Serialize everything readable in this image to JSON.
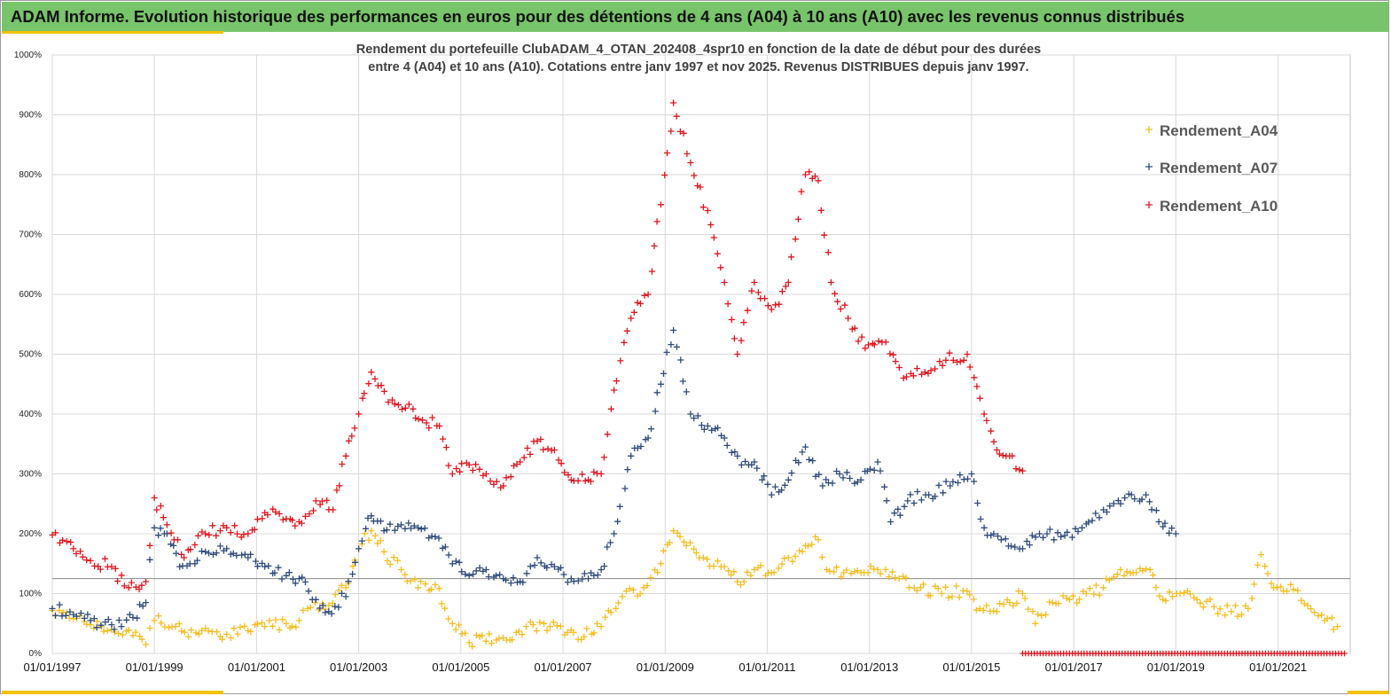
{
  "banner": {
    "title": "ADAM Informe. Evolution historique des performances en euros pour des détentions de 4 ans (A04) à 10 ans (A10) avec les revenus connus distribués"
  },
  "colors": {
    "banner_bg": "#78c46a",
    "accent": "#f2c200",
    "A04": "#f5bd1f",
    "A07": "#2f4a7a",
    "A10": "#e0141e"
  },
  "chart_data": {
    "type": "scatter",
    "title_lines": [
      "Rendement du portefeuille ClubADAM_4_OTAN_202408_4spr10  en fonction de la date de début pour des durées",
      "entre 4 (A04) et 10 ans (A10). Cotations entre janv 1997 et nov 2025. Revenus DISTRIBUES depuis janv 1997."
    ],
    "xlabel": "",
    "ylabel": "",
    "x_range": [
      "1997-01-01",
      "2022-06-01"
    ],
    "y_range": [
      0,
      1000
    ],
    "y_unit": "%",
    "y_ticks": [
      0,
      100,
      200,
      300,
      400,
      500,
      600,
      700,
      800,
      900,
      1000
    ],
    "y_tick_labels": [
      "0%",
      "100%",
      "200%",
      "300%",
      "400%",
      "500%",
      "600%",
      "700%",
      "800%",
      "900%",
      "1000%"
    ],
    "x_tick_labels": [
      "01/01/1997",
      "01/01/1999",
      "01/01/2001",
      "01/01/2003",
      "01/01/2005",
      "01/01/2007",
      "01/01/2009",
      "01/01/2011",
      "01/01/2013",
      "01/01/2015",
      "01/01/2017",
      "01/01/2019",
      "01/01/2021"
    ],
    "x_tick_dates": [
      "1997-01-01",
      "1999-01-01",
      "2001-01-01",
      "2003-01-01",
      "2005-01-01",
      "2007-01-01",
      "2009-01-01",
      "2011-01-01",
      "2013-01-01",
      "2015-01-01",
      "2017-01-01",
      "2019-01-01",
      "2021-01-01"
    ],
    "grid": true,
    "marker": "+",
    "reference_line_y": 125,
    "legend_position": "top-right",
    "series": [
      {
        "name": "Rendement_A04",
        "color": "#f5bd1f",
        "points": [
          [
            "1997-01-01",
            72
          ],
          [
            "1997-06-01",
            58
          ],
          [
            "1997-10-01",
            48
          ],
          [
            "1998-03-01",
            40
          ],
          [
            "1998-08-01",
            30
          ],
          [
            "1998-11-01",
            15
          ],
          [
            "1999-01-01",
            55
          ],
          [
            "1999-06-01",
            45
          ],
          [
            "1999-09-01",
            28
          ],
          [
            "2000-01-01",
            42
          ],
          [
            "2000-06-01",
            32
          ],
          [
            "2000-11-01",
            38
          ],
          [
            "2001-03-01",
            45
          ],
          [
            "2001-08-01",
            50
          ],
          [
            "2001-11-01",
            55
          ],
          [
            "2002-01-01",
            75
          ],
          [
            "2002-06-01",
            80
          ],
          [
            "2002-10-01",
            110
          ],
          [
            "2003-01-01",
            175
          ],
          [
            "2003-04-01",
            205
          ],
          [
            "2003-07-01",
            170
          ],
          [
            "2003-11-01",
            140
          ],
          [
            "2004-03-01",
            110
          ],
          [
            "2004-07-01",
            115
          ],
          [
            "2004-11-01",
            50
          ],
          [
            "2005-03-01",
            18
          ],
          [
            "2005-06-01",
            30
          ],
          [
            "2005-10-01",
            25
          ],
          [
            "2006-02-01",
            35
          ],
          [
            "2006-06-01",
            48
          ],
          [
            "2006-10-01",
            45
          ],
          [
            "2007-02-01",
            35
          ],
          [
            "2007-06-01",
            28
          ],
          [
            "2007-10-01",
            45
          ],
          [
            "2008-03-01",
            95
          ],
          [
            "2008-08-01",
            110
          ],
          [
            "2008-12-01",
            150
          ],
          [
            "2009-03-01",
            205
          ],
          [
            "2009-06-01",
            180
          ],
          [
            "2009-10-01",
            160
          ],
          [
            "2010-03-01",
            145
          ],
          [
            "2010-06-01",
            120
          ],
          [
            "2010-10-01",
            140
          ],
          [
            "2011-02-01",
            135
          ],
          [
            "2011-06-01",
            160
          ],
          [
            "2011-10-01",
            180
          ],
          [
            "2012-01-01",
            190
          ],
          [
            "2012-03-01",
            140
          ],
          [
            "2012-07-01",
            135
          ],
          [
            "2012-11-01",
            135
          ],
          [
            "2013-03-01",
            140
          ],
          [
            "2013-08-01",
            125
          ],
          [
            "2014-01-01",
            110
          ],
          [
            "2014-06-01",
            100
          ],
          [
            "2014-11-01",
            105
          ],
          [
            "2015-03-01",
            75
          ],
          [
            "2015-07-01",
            70
          ],
          [
            "2015-10-01",
            85
          ],
          [
            "2016-01-01",
            100
          ],
          [
            "2016-04-01",
            50
          ],
          [
            "2016-08-01",
            85
          ],
          [
            "2016-12-01",
            90
          ],
          [
            "2017-04-01",
            100
          ],
          [
            "2017-08-01",
            110
          ],
          [
            "2017-12-01",
            140
          ],
          [
            "2018-03-01",
            135
          ],
          [
            "2018-07-01",
            140
          ],
          [
            "2018-10-01",
            90
          ],
          [
            "2019-02-01",
            100
          ],
          [
            "2019-06-01",
            90
          ],
          [
            "2019-10-01",
            78
          ],
          [
            "2020-02-01",
            70
          ],
          [
            "2020-06-01",
            75
          ],
          [
            "2020-09-01",
            165
          ],
          [
            "2020-12-01",
            110
          ],
          [
            "2021-04-01",
            115
          ],
          [
            "2021-08-01",
            80
          ],
          [
            "2021-12-01",
            55
          ],
          [
            "2022-03-01",
            45
          ]
        ]
      },
      {
        "name": "Rendement_A07",
        "color": "#2f4a7a",
        "points": [
          [
            "1997-01-01",
            75
          ],
          [
            "1997-06-01",
            65
          ],
          [
            "1997-10-01",
            55
          ],
          [
            "1998-03-01",
            48
          ],
          [
            "1998-08-01",
            60
          ],
          [
            "1998-11-01",
            85
          ],
          [
            "1999-01-01",
            210
          ],
          [
            "1999-04-01",
            200
          ],
          [
            "1999-07-01",
            145
          ],
          [
            "2000-01-01",
            170
          ],
          [
            "2000-06-01",
            175
          ],
          [
            "2000-11-01",
            160
          ],
          [
            "2001-03-01",
            145
          ],
          [
            "2001-08-01",
            130
          ],
          [
            "2001-11-01",
            125
          ],
          [
            "2002-03-01",
            90
          ],
          [
            "2002-06-01",
            70
          ],
          [
            "2002-10-01",
            95
          ],
          [
            "2003-01-01",
            175
          ],
          [
            "2003-04-01",
            230
          ],
          [
            "2003-07-01",
            205
          ],
          [
            "2003-11-01",
            215
          ],
          [
            "2004-03-01",
            210
          ],
          [
            "2004-07-01",
            195
          ],
          [
            "2004-11-01",
            150
          ],
          [
            "2005-03-01",
            130
          ],
          [
            "2005-07-01",
            140
          ],
          [
            "2005-11-01",
            125
          ],
          [
            "2006-03-01",
            120
          ],
          [
            "2006-07-01",
            160
          ],
          [
            "2006-11-01",
            145
          ],
          [
            "2007-03-01",
            125
          ],
          [
            "2007-07-01",
            125
          ],
          [
            "2007-10-01",
            140
          ],
          [
            "2008-01-01",
            200
          ],
          [
            "2008-05-01",
            330
          ],
          [
            "2008-09-01",
            360
          ],
          [
            "2008-12-01",
            450
          ],
          [
            "2009-03-01",
            540
          ],
          [
            "2009-07-01",
            400
          ],
          [
            "2009-11-01",
            380
          ],
          [
            "2010-03-01",
            360
          ],
          [
            "2010-07-01",
            315
          ],
          [
            "2010-10-01",
            320
          ],
          [
            "2011-02-01",
            265
          ],
          [
            "2011-06-01",
            290
          ],
          [
            "2011-10-01",
            345
          ],
          [
            "2012-02-01",
            280
          ],
          [
            "2012-06-01",
            300
          ],
          [
            "2012-11-01",
            290
          ],
          [
            "2013-03-01",
            320
          ],
          [
            "2013-06-01",
            220
          ],
          [
            "2013-10-01",
            255
          ],
          [
            "2014-03-01",
            265
          ],
          [
            "2014-08-01",
            280
          ],
          [
            "2015-01-01",
            300
          ],
          [
            "2015-04-01",
            210
          ],
          [
            "2015-08-01",
            190
          ],
          [
            "2016-01-01",
            175
          ],
          [
            "2016-05-01",
            200
          ],
          [
            "2016-10-01",
            195
          ],
          [
            "2017-03-01",
            210
          ],
          [
            "2017-08-01",
            240
          ],
          [
            "2018-01-01",
            260
          ],
          [
            "2018-06-01",
            265
          ],
          [
            "2018-09-01",
            220
          ],
          [
            "2019-01-01",
            200
          ]
        ]
      },
      {
        "name": "Rendement_A10",
        "color": "#e0141e",
        "points": [
          [
            "1997-01-01",
            198
          ],
          [
            "1997-06-01",
            175
          ],
          [
            "1997-10-01",
            155
          ],
          [
            "1998-03-01",
            145
          ],
          [
            "1998-07-01",
            110
          ],
          [
            "1998-11-01",
            120
          ],
          [
            "1999-01-01",
            260
          ],
          [
            "1999-04-01",
            215
          ],
          [
            "1999-08-01",
            160
          ],
          [
            "2000-01-01",
            200
          ],
          [
            "2000-06-01",
            210
          ],
          [
            "2000-11-01",
            200
          ],
          [
            "2001-03-01",
            235
          ],
          [
            "2001-08-01",
            225
          ],
          [
            "2001-11-01",
            220
          ],
          [
            "2002-03-01",
            255
          ],
          [
            "2002-07-01",
            240
          ],
          [
            "2002-10-01",
            330
          ],
          [
            "2003-01-01",
            400
          ],
          [
            "2003-04-01",
            470
          ],
          [
            "2003-08-01",
            420
          ],
          [
            "2003-12-01",
            410
          ],
          [
            "2004-04-01",
            390
          ],
          [
            "2004-08-01",
            380
          ],
          [
            "2004-11-01",
            300
          ],
          [
            "2005-03-01",
            315
          ],
          [
            "2005-07-01",
            300
          ],
          [
            "2005-11-01",
            280
          ],
          [
            "2006-03-01",
            320
          ],
          [
            "2006-07-01",
            355
          ],
          [
            "2006-11-01",
            340
          ],
          [
            "2007-03-01",
            290
          ],
          [
            "2007-07-01",
            290
          ],
          [
            "2007-10-01",
            300
          ],
          [
            "2008-01-01",
            440
          ],
          [
            "2008-05-01",
            560
          ],
          [
            "2008-09-01",
            600
          ],
          [
            "2008-12-01",
            750
          ],
          [
            "2009-03-01",
            920
          ],
          [
            "2009-07-01",
            820
          ],
          [
            "2009-11-01",
            740
          ],
          [
            "2010-03-01",
            620
          ],
          [
            "2010-06-01",
            500
          ],
          [
            "2010-10-01",
            620
          ],
          [
            "2011-02-01",
            575
          ],
          [
            "2011-06-01",
            620
          ],
          [
            "2011-10-01",
            800
          ],
          [
            "2012-01-01",
            790
          ],
          [
            "2012-04-01",
            620
          ],
          [
            "2012-08-01",
            560
          ],
          [
            "2012-12-01",
            510
          ],
          [
            "2013-04-01",
            520
          ],
          [
            "2013-09-01",
            460
          ],
          [
            "2014-02-01",
            470
          ],
          [
            "2014-07-01",
            490
          ],
          [
            "2014-12-01",
            500
          ],
          [
            "2015-04-01",
            400
          ],
          [
            "2015-07-01",
            340
          ],
          [
            "2015-10-01",
            330
          ],
          [
            "2016-01-01",
            305
          ]
        ]
      }
    ],
    "baseline_series": {
      "color": "#e0141e",
      "y": 0,
      "x_range": [
        "2016-01-01",
        "2022-05-01"
      ]
    }
  }
}
